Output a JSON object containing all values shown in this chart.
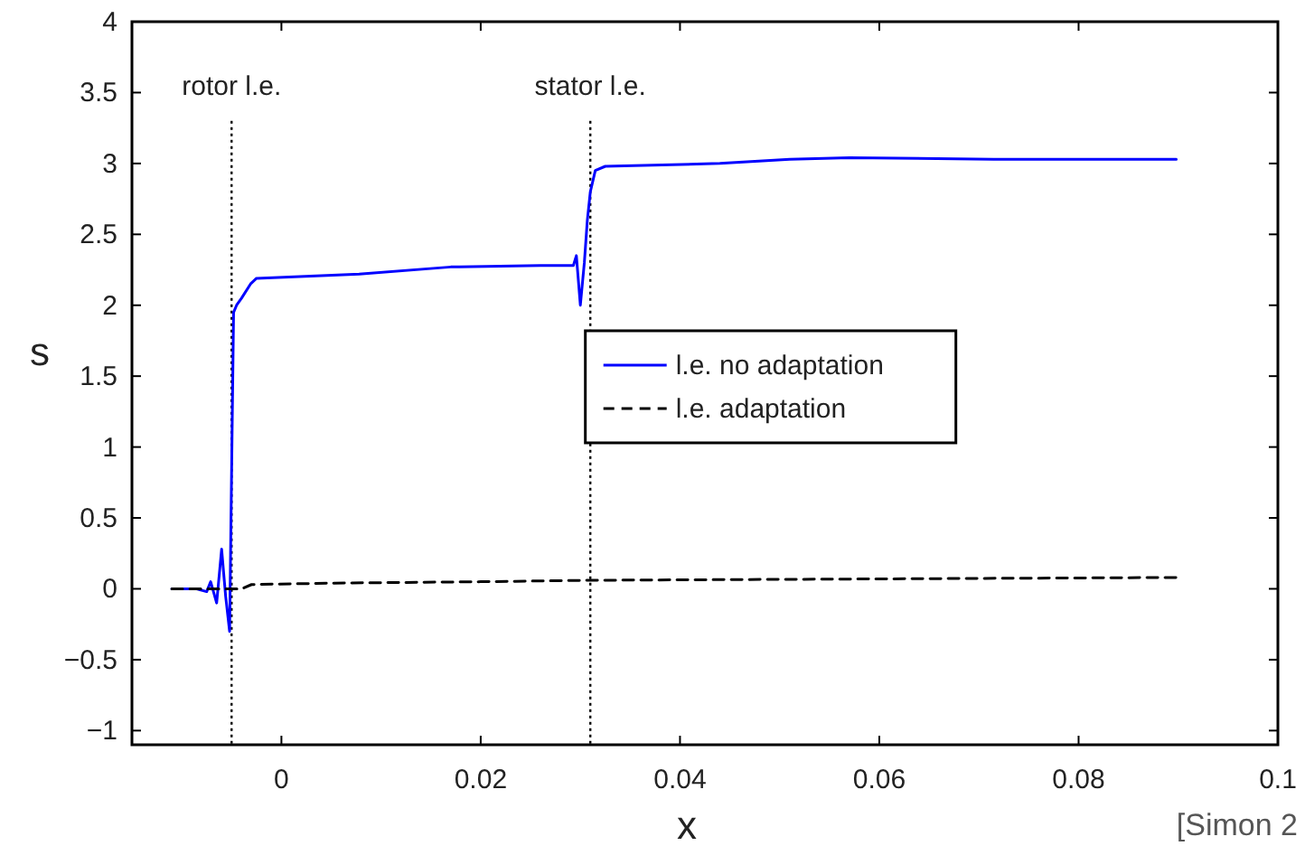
{
  "chart_data": {
    "type": "line",
    "xlabel": "x",
    "ylabel": "s",
    "xlim": [
      -0.015,
      0.1
    ],
    "xticks": [
      0,
      0.02,
      0.04,
      0.06,
      0.08,
      0.1
    ],
    "ylim": [
      -1.1,
      4
    ],
    "yticks": [
      {
        "value": -1,
        "label": "−1"
      },
      {
        "value": -0.5,
        "label": "−0.5"
      },
      0,
      0.5,
      1,
      1.5,
      2,
      2.5,
      3,
      3.5,
      4
    ],
    "series": [
      {
        "name": "l.e. no adaptation",
        "color": "#0000ff",
        "line_style": "solid",
        "x": [
          -0.011,
          -0.0085,
          -0.0075,
          -0.0071,
          -0.0065,
          -0.006,
          -0.0056,
          -0.0052,
          -0.0048,
          -0.0045,
          -0.004,
          -0.0031,
          -0.0025,
          0.0078,
          0.017,
          0.026,
          0.0293,
          0.0296,
          0.03,
          0.0304,
          0.0307,
          0.031,
          0.0315,
          0.0325,
          0.044,
          0.051,
          0.057,
          0.0715,
          0.0898
        ],
        "values": [
          0,
          0,
          -0.02,
          0.05,
          -0.1,
          0.28,
          -0.05,
          -0.3,
          1.95,
          2.0,
          2.05,
          2.15,
          2.19,
          2.22,
          2.27,
          2.28,
          2.28,
          2.35,
          2.0,
          2.3,
          2.6,
          2.8,
          2.95,
          2.98,
          3.0,
          3.03,
          3.04,
          3.03,
          3.03
        ]
      },
      {
        "name": "l.e. adaptation",
        "color": "#000000",
        "line_style": "dashed",
        "x": [
          -0.011,
          -0.0055,
          -0.004,
          -0.003,
          0.005,
          0.02,
          0.031,
          0.06,
          0.09
        ],
        "values": [
          0,
          0,
          0,
          0.03,
          0.04,
          0.05,
          0.06,
          0.07,
          0.08
        ]
      }
    ],
    "ref_lines": [
      {
        "axis": "x",
        "value": -0.005,
        "label": "rotor l.e.",
        "color": "#000000",
        "line_style": "dotted"
      },
      {
        "axis": "x",
        "value": 0.031,
        "label": "stator l.e.",
        "color": "#000000",
        "line_style": "dotted"
      }
    ],
    "legend": "right",
    "grid": false,
    "annotations": [
      "[Simon 2"
    ]
  }
}
